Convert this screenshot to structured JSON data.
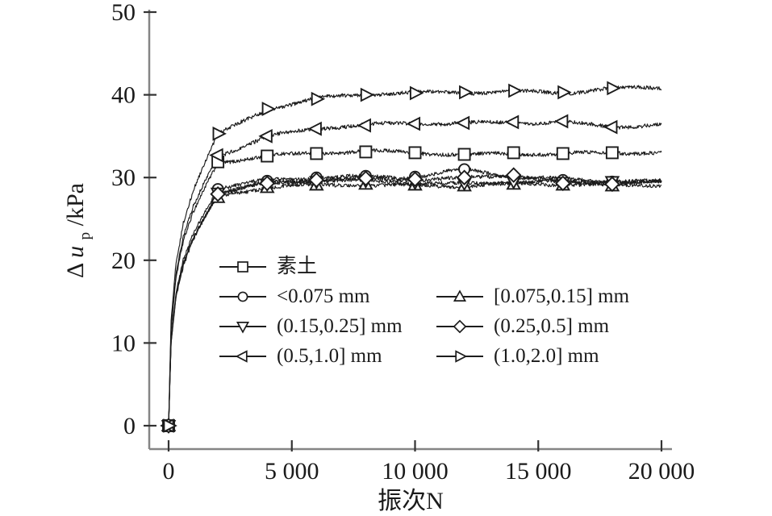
{
  "chart_data": {
    "type": "line",
    "title": "",
    "xlabel": "振次N",
    "ylabel": "Δu_p/kPa",
    "ylabel_parts": {
      "delta": "Δ",
      "var": "u",
      "sub": "p",
      "rest": "/kPa"
    },
    "x_axis": {
      "min": 0,
      "max": 20000,
      "ticks": [
        0,
        5000,
        10000,
        15000,
        20000
      ],
      "tick_labels": [
        "0",
        "5 000",
        "10 000",
        "15 000",
        "20 000"
      ]
    },
    "y_axis": {
      "min": 0,
      "max": 50,
      "ticks": [
        0,
        10,
        20,
        30,
        40,
        50
      ],
      "tick_labels": [
        "0",
        "10",
        "20",
        "30",
        "40",
        "50"
      ]
    },
    "grid": false,
    "legend_position": "inside lower-left, 2 columns",
    "line_color": "#1c1c1c",
    "axis_color": "#858585",
    "tick_color": "#333333",
    "noise_amplitude_kPa": 0.22,
    "marker_N": [
      0,
      2000,
      4000,
      6000,
      8000,
      10000,
      12000,
      14000,
      16000,
      18000
    ],
    "anchor_N": [
      0,
      100,
      300,
      600,
      1000,
      1500,
      2000,
      4000,
      6000,
      8000,
      10000,
      12000,
      14000,
      16000,
      18000,
      20000
    ],
    "series": [
      {
        "id": "sutu",
        "label": "素土",
        "marker": "square",
        "legend_row": 0,
        "legend_col": 0,
        "plateau_kPa": 33.0,
        "values": [
          0,
          11.5,
          17.9,
          22.3,
          25.8,
          29.0,
          31.9,
          32.6,
          32.9,
          33.1,
          33.0,
          32.8,
          33.0,
          32.9,
          33.0,
          32.9
        ]
      },
      {
        "id": "lt0075",
        "label": "<0.075 mm",
        "marker": "circle",
        "legend_row": 1,
        "legend_col": 0,
        "plateau_kPa": 29.5,
        "values": [
          0,
          10.3,
          16.0,
          20.0,
          23.2,
          26.0,
          28.6,
          29.6,
          30.0,
          30.2,
          30.1,
          31.0,
          30.0,
          29.7,
          29.5,
          29.4
        ]
      },
      {
        "id": "r0075-015",
        "label": "[0.075,0.15] mm",
        "marker": "triangle-up",
        "legend_row": 1,
        "legend_col": 1,
        "plateau_kPa": 29.2,
        "values": [
          0,
          9.9,
          15.5,
          19.3,
          22.4,
          25.1,
          27.6,
          28.8,
          29.1,
          29.2,
          29.1,
          29.0,
          29.2,
          29.1,
          29.0,
          29.2
        ]
      },
      {
        "id": "r015-025",
        "label": "(0.15,0.25] mm",
        "marker": "triangle-down",
        "legend_row": 2,
        "legend_col": 0,
        "plateau_kPa": 29.5,
        "values": [
          0,
          10.1,
          15.7,
          19.7,
          22.8,
          25.6,
          28.1,
          29.2,
          29.5,
          29.6,
          29.4,
          29.3,
          29.5,
          29.4,
          29.5,
          29.4
        ]
      },
      {
        "id": "r025-05",
        "label": "(0.25,0.5] mm",
        "marker": "diamond",
        "legend_row": 2,
        "legend_col": 1,
        "plateau_kPa": 29.8,
        "values": [
          0,
          10.1,
          15.7,
          19.6,
          22.7,
          25.5,
          28.0,
          29.3,
          29.7,
          29.9,
          29.8,
          30.0,
          30.3,
          29.3,
          29.2,
          29.5
        ]
      },
      {
        "id": "r05-10",
        "label": "(0.5,1.0] mm",
        "marker": "triangle-left",
        "legend_row": 3,
        "legend_col": 0,
        "plateau_kPa": 36.5,
        "values": [
          0,
          11.8,
          18.3,
          22.9,
          26.5,
          29.8,
          32.7,
          35.0,
          35.9,
          36.3,
          36.5,
          36.6,
          36.7,
          36.8,
          36.1,
          36.4
        ]
      },
      {
        "id": "r10-20",
        "label": "(1.0,2.0] mm",
        "marker": "triangle-right",
        "legend_row": 3,
        "legend_col": 1,
        "plateau_kPa": 40.8,
        "values": [
          0,
          12.7,
          19.8,
          24.7,
          28.6,
          32.1,
          35.3,
          38.3,
          39.5,
          40.0,
          40.2,
          40.3,
          40.5,
          40.3,
          40.8,
          40.8
        ]
      }
    ]
  }
}
